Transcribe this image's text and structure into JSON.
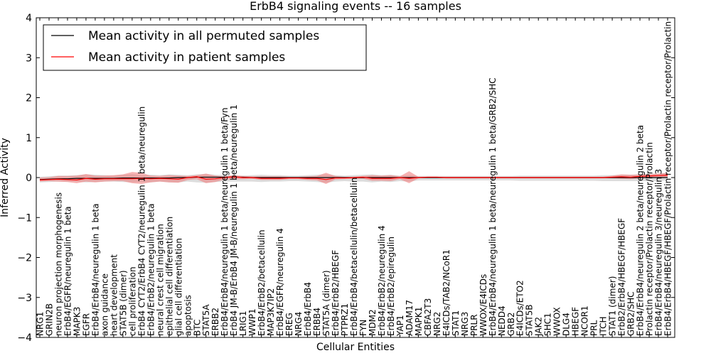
{
  "chart_data": {
    "type": "line",
    "title": "ErbB4 signaling events -- 16 samples",
    "xlabel": "Cellular Entities",
    "ylabel": "Inferred Activity",
    "ylim": [
      -4,
      4
    ],
    "yticks": [
      "4",
      "3",
      "2",
      "1",
      "0",
      "−1",
      "−2",
      "−3",
      "−4"
    ],
    "ytick_values": [
      4,
      3,
      2,
      1,
      0,
      -1,
      -2,
      -3,
      -4
    ],
    "legend_position": "top-left",
    "legend": [
      {
        "label": "Mean activity in all permuted samples",
        "color": "#000000"
      },
      {
        "label": "Mean activity in patient samples",
        "color": "#ff0000"
      }
    ],
    "categories": [
      "NRG1",
      "GRIN2B",
      "neuron projection morphogenesis",
      "ErbB4/EGFR/neuregulin 1 beta",
      "MAPK3",
      "EGFR",
      "ErbB4/ErbB4/neuregulin 1 beta",
      "axon guidance",
      "heart development",
      "STAT5B (dimer)",
      "cell proliferation",
      "ErbB4 CYT2/ErbB4 CYT2/neuregulin 1 beta/neuregulin",
      "ErbB4/ErbB2/neuregulin 1 beta",
      "neural crest cell migration",
      "epithelial cell differentiation",
      "glial cell differentiation",
      "apoptosis",
      "BTC",
      "STAT5A",
      "ERBB2",
      "ErbB4/ErbB4/neuregulin 1 beta/neuregulin 1 beta/Fyn",
      "ErbB4 JM-B/ErbB4 JM-B/neuregulin 1 beta/neuregulin 1",
      "LRIG1",
      "WWP1",
      "ErbB4/ErbB2/betacellulin",
      "MAP3K7IP2",
      "ErbB4/EGFR/neuregulin 4",
      "EREG",
      "NRG4",
      "ErbB4/ErbB4",
      "ERBB4",
      "STAT5A (dimer)",
      "ErbB4/ErbB2/HBEGF",
      "PTPRZ1",
      "ErbB4/ErbB4/betacellulin/betacellulin",
      "FYN",
      "MDM2",
      "ErbB4/ErbB2/neuregulin 4",
      "ErbB4/ErbB2/epiregulin",
      "YAP1",
      "ADAM17",
      "MAPK1",
      "CBFA2T3",
      "NRG2",
      "E4ICDs/TAB2/NCoR1",
      "STAT1",
      "NRG3",
      "PRLR",
      "WWOX/E4ICDs",
      "ErbB4/ErbB4/neuregulin 1 beta/neuregulin 1 beta/GRB2/SHC",
      "NEDD4",
      "GRB2",
      "E4ICDs/ETO2",
      "STAT5B",
      "JAK2",
      "SHC1",
      "WWOX",
      "DLG4",
      "HBEGF",
      "NCOR1",
      "PRL",
      "ITCH",
      "STAT1 (dimer)",
      "ErbB2/ErbB4/HBEGF/HBEGF",
      "GRB2/SHC",
      "ErbB4/ErbB4/neuregulin 2 beta/neuregulin 2 beta",
      "Prolactin receptor/Prolactin receptor/Prolactin",
      "ErbB4/ErbB4/neuregulin 3/neuregulin 3",
      "ErbB4/ErbB4/HBEGF/HBEGF/Prolactin receptor/Prolactin receptor/Prolactin"
    ],
    "series": [
      {
        "name": "Mean activity in all permuted samples",
        "color": "#000000",
        "values": [
          -0.05,
          -0.04,
          -0.03,
          -0.03,
          -0.02,
          -0.02,
          -0.02,
          -0.02,
          -0.02,
          -0.01,
          -0.01,
          -0.01,
          -0.01,
          -0.01,
          -0.01,
          0.0,
          0.0,
          0.01,
          0.01,
          0.01,
          0.01,
          0.01,
          0.01,
          0.0,
          0.0,
          0.0,
          0.0,
          0.0,
          0.0,
          0.0,
          0.0,
          0.0,
          0.0,
          0.0,
          0.0,
          0.0,
          0.0,
          0.0,
          0.0,
          0.0,
          0.0,
          0.0,
          0.0,
          0.0,
          0.0,
          0.0,
          0.0,
          0.0,
          0.0,
          0.0,
          0.0,
          0.0,
          0.0,
          0.0,
          0.0,
          0.0,
          0.0,
          0.0,
          0.0,
          0.0,
          0.0,
          0.0,
          0.0,
          0.0,
          0.0,
          0.0,
          0.0,
          0.0,
          0.0
        ]
      },
      {
        "name": "Mean activity in patient samples",
        "color": "#ff0000",
        "values": [
          -0.06,
          -0.05,
          -0.04,
          -0.05,
          -0.06,
          -0.02,
          -0.04,
          -0.03,
          -0.03,
          -0.03,
          -0.03,
          -0.02,
          -0.03,
          -0.02,
          -0.03,
          -0.04,
          0.0,
          0.02,
          -0.04,
          -0.03,
          0.0,
          0.02,
          0.0,
          0.0,
          -0.02,
          -0.02,
          -0.02,
          -0.01,
          -0.01,
          -0.02,
          -0.02,
          -0.05,
          -0.01,
          -0.01,
          0.0,
          0.01,
          -0.02,
          -0.02,
          -0.02,
          0.0,
          -0.02,
          0.0,
          0.01,
          0.01,
          0.0,
          0.0,
          0.0,
          0.0,
          0.0,
          0.0,
          0.0,
          0.0,
          0.0,
          0.0,
          0.0,
          0.0,
          0.0,
          0.0,
          0.0,
          0.0,
          0.0,
          0.0,
          0.01,
          0.02,
          0.01,
          0.03,
          0.04,
          0.05,
          0.06
        ]
      }
    ],
    "bands": [
      {
        "name": "permuted spread",
        "color": "#bbbbbb",
        "upper": [
          0.02,
          0.03,
          0.05,
          0.05,
          0.06,
          0.08,
          0.07,
          0.06,
          0.05,
          0.07,
          0.09,
          0.06,
          0.07,
          0.06,
          0.08,
          0.07,
          0.06,
          0.08,
          0.09,
          0.07,
          0.06,
          0.05,
          0.05,
          0.06,
          0.07,
          0.06,
          0.06,
          0.05,
          0.05,
          0.06,
          0.07,
          0.08,
          0.06,
          0.05,
          0.06,
          0.07,
          0.08,
          0.06,
          0.07,
          0.05,
          0.06,
          0.04,
          0.04,
          0.04,
          0.04,
          0.04,
          0.04,
          0.04,
          0.04,
          0.04,
          0.04,
          0.04,
          0.05,
          0.05,
          0.05,
          0.05,
          0.05,
          0.05,
          0.05,
          0.05,
          0.05,
          0.06,
          0.06,
          0.07,
          0.07,
          0.08,
          0.09,
          0.1,
          0.11
        ],
        "lower": [
          -0.12,
          -0.11,
          -0.1,
          -0.1,
          -0.1,
          -0.12,
          -0.11,
          -0.1,
          -0.1,
          -0.11,
          -0.12,
          -0.11,
          -0.12,
          -0.1,
          -0.12,
          -0.12,
          -0.1,
          -0.12,
          -0.13,
          -0.11,
          -0.1,
          -0.1,
          -0.1,
          -0.1,
          -0.11,
          -0.1,
          -0.1,
          -0.09,
          -0.09,
          -0.1,
          -0.11,
          -0.13,
          -0.1,
          -0.09,
          -0.1,
          -0.1,
          -0.12,
          -0.1,
          -0.11,
          -0.09,
          -0.1,
          -0.07,
          -0.07,
          -0.07,
          -0.07,
          -0.07,
          -0.07,
          -0.07,
          -0.07,
          -0.07,
          -0.07,
          -0.07,
          -0.08,
          -0.08,
          -0.08,
          -0.08,
          -0.08,
          -0.08,
          -0.08,
          -0.08,
          -0.08,
          -0.09,
          -0.09,
          -0.09,
          -0.09,
          -0.09,
          -0.09,
          -0.08,
          -0.07
        ]
      },
      {
        "name": "patient spread",
        "color": "#f08080",
        "upper": [
          0.0,
          0.01,
          0.04,
          0.04,
          0.05,
          0.09,
          0.05,
          0.05,
          0.06,
          0.08,
          0.14,
          0.12,
          0.05,
          0.04,
          0.06,
          0.05,
          0.04,
          0.06,
          0.1,
          0.05,
          0.03,
          0.06,
          0.04,
          0.03,
          0.03,
          0.03,
          0.03,
          0.02,
          0.02,
          0.03,
          0.04,
          0.12,
          0.04,
          0.02,
          0.02,
          0.04,
          0.06,
          0.05,
          0.06,
          0.03,
          0.16,
          0.02,
          0.02,
          0.02,
          0.02,
          0.02,
          0.02,
          0.02,
          0.02,
          0.02,
          0.02,
          0.02,
          0.02,
          0.02,
          0.02,
          0.02,
          0.02,
          0.02,
          0.02,
          0.02,
          0.02,
          0.02,
          0.05,
          0.08,
          0.07,
          0.08,
          0.09,
          0.1,
          0.12
        ],
        "lower": [
          -0.1,
          -0.09,
          -0.1,
          -0.11,
          -0.14,
          -0.1,
          -0.12,
          -0.1,
          -0.09,
          -0.09,
          -0.14,
          -0.16,
          -0.12,
          -0.1,
          -0.12,
          -0.13,
          -0.06,
          -0.04,
          -0.14,
          -0.11,
          -0.05,
          -0.04,
          -0.04,
          -0.03,
          -0.06,
          -0.06,
          -0.06,
          -0.04,
          -0.04,
          -0.06,
          -0.07,
          -0.16,
          -0.05,
          -0.04,
          -0.03,
          -0.03,
          -0.08,
          -0.08,
          -0.09,
          -0.04,
          -0.14,
          -0.02,
          -0.01,
          -0.01,
          -0.02,
          -0.02,
          -0.02,
          -0.02,
          -0.02,
          -0.02,
          -0.02,
          -0.02,
          -0.02,
          -0.02,
          -0.02,
          -0.02,
          -0.02,
          -0.02,
          -0.02,
          -0.02,
          -0.02,
          -0.02,
          -0.02,
          -0.03,
          -0.04,
          -0.02,
          -0.01,
          0.0,
          0.01
        ]
      }
    ]
  }
}
